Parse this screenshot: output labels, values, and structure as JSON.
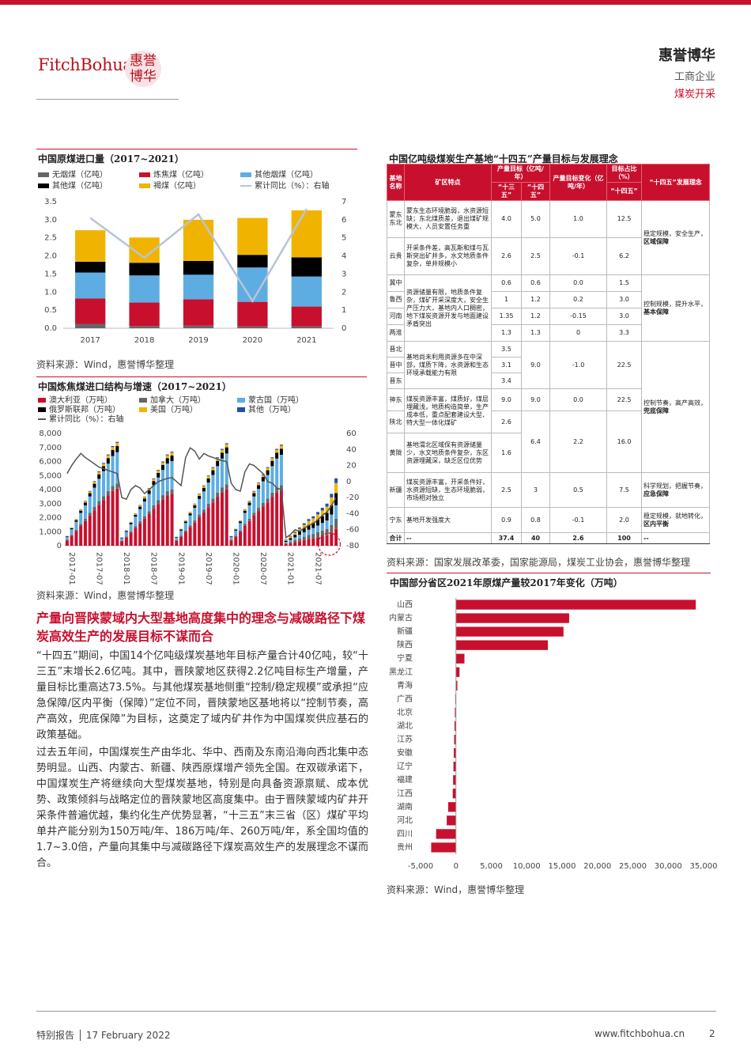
{
  "header": {
    "logo_text": "FitchBohua",
    "logo_seal": "惠誉博华",
    "company": "惠誉博华",
    "category": "工商企业",
    "sector": "煤炭开采"
  },
  "colors": {
    "accent": "#c8102e",
    "blue": "#5dade2",
    "gold": "#f0b400",
    "black": "#000000",
    "grey": "#666666",
    "line": "#b8c4d6"
  },
  "chart1": {
    "title": "中国原煤进口量（2017~2021）",
    "legend": [
      "无烟煤（亿吨）",
      "炼焦煤（亿吨）",
      "其他烟煤（亿吨）",
      "其他煤（亿吨）",
      "褐煤（亿吨）",
      "累计同比（%）：右轴"
    ],
    "source": "资料来源：Wind，惠誉博华整理"
  },
  "chart2": {
    "title": "中国炼焦煤进口结构与增速（2017~2021）",
    "legend": [
      "澳大利亚（万吨）",
      "加拿大（万吨）",
      "蒙古国（万吨）",
      "俄罗斯联邦（万吨）",
      "美国（万吨）",
      "其他（万吨）",
      "累计同比（%）：右轴"
    ],
    "source": "资料来源：Wind，惠誉博华整理"
  },
  "chart3": {
    "title": "中国部分省区2021年原煤产量较2017年变化（万吨）",
    "source": "资料来源：Wind，惠誉博华整理"
  },
  "chart_data": [
    {
      "type": "bar",
      "title": "中国原煤进口量（2017~2021）",
      "categories": [
        "2017",
        "2018",
        "2019",
        "2020",
        "2021"
      ],
      "stacked": true,
      "ylim": [
        0,
        3.5
      ],
      "y2lim": [
        0,
        7
      ],
      "yticks": [
        "0.0",
        "0.5",
        "1.0",
        "1.5",
        "2.0",
        "2.5",
        "3.0",
        "3.5"
      ],
      "y2ticks": [
        "0",
        "1",
        "2",
        "3",
        "4",
        "5",
        "6",
        "7"
      ],
      "series": [
        {
          "name": "无烟煤（亿吨）",
          "color": "#666666",
          "values": [
            0.12,
            0.06,
            0.07,
            0.05,
            0.05
          ]
        },
        {
          "name": "炼焦煤（亿吨）",
          "color": "#c8102e",
          "values": [
            0.7,
            0.65,
            0.73,
            0.68,
            0.55
          ]
        },
        {
          "name": "其他烟煤（亿吨）",
          "color": "#5dade2",
          "values": [
            0.72,
            0.75,
            0.68,
            0.95,
            0.83
          ]
        },
        {
          "name": "其他煤（亿吨）",
          "color": "#000000",
          "values": [
            0.3,
            0.35,
            0.38,
            0.35,
            0.53
          ]
        },
        {
          "name": "褐煤（亿吨）",
          "color": "#f0b400",
          "values": [
            0.87,
            0.7,
            1.14,
            1.02,
            1.3
          ]
        }
      ],
      "line": {
        "name": "累计同比（%）：右轴",
        "axis": "right",
        "values": [
          6.1,
          3.9,
          6.3,
          1.5,
          6.6
        ]
      }
    },
    {
      "type": "bar",
      "title": "中国炼焦煤进口结构与增速（2017~2021）",
      "stacked": true,
      "x_start": "2017-01",
      "xticks": [
        "2017-01",
        "2017-07",
        "2018-01",
        "2018-07",
        "2019-01",
        "2019-07",
        "2020-01",
        "2020-07",
        "2021-01",
        "2021-07"
      ],
      "ylim": [
        0,
        8000
      ],
      "y2lim": [
        -80,
        60
      ],
      "yticks": [
        "0",
        "1,000",
        "2,000",
        "3,000",
        "4,000",
        "5,000",
        "6,000",
        "7,000",
        "8,000"
      ],
      "y2ticks": [
        "-80",
        "-60",
        "-40",
        "-20",
        "0",
        "20",
        "40",
        "60"
      ],
      "totals": [
        700,
        1300,
        1900,
        2600,
        3200,
        3900,
        4600,
        5300,
        5900,
        6500,
        7100,
        7400,
        600,
        1100,
        1700,
        2300,
        2900,
        3500,
        4100,
        4800,
        5400,
        6000,
        6500,
        6700,
        650,
        1200,
        1800,
        2400,
        3000,
        3700,
        4300,
        5000,
        5600,
        6300,
        6900,
        7300,
        700,
        1200,
        1800,
        2600,
        3200,
        3900,
        4500,
        5100,
        5600,
        6300,
        6900,
        7200,
        450,
        700,
        1000,
        1300,
        1600,
        1900,
        2100,
        2400,
        2700,
        3000,
        3700,
        4800
      ],
      "australia_share": 0.55,
      "series": [
        {
          "name": "澳大利亚（万吨）",
          "color": "#c8102e"
        },
        {
          "name": "加拿大（万吨）",
          "color": "#666666"
        },
        {
          "name": "蒙古国（万吨）",
          "color": "#5dade2"
        },
        {
          "name": "俄罗斯联邦（万吨）",
          "color": "#000000"
        },
        {
          "name": "美国（万吨）",
          "color": "#f0b400"
        },
        {
          "name": "其他（万吨）",
          "color": "#1f4fb0"
        }
      ],
      "line": {
        "name": "累计同比（%）：右轴",
        "axis": "right",
        "values": [
          10,
          20,
          28,
          35,
          30,
          26,
          22,
          18,
          16,
          14,
          12,
          10,
          -20,
          -22,
          -10,
          -5,
          -8,
          -15,
          -10,
          -5,
          0,
          2,
          4,
          5,
          0,
          -5,
          30,
          42,
          38,
          28,
          35,
          32,
          30,
          28,
          26,
          25,
          -2,
          -10,
          -12,
          12,
          22,
          20,
          15,
          10,
          0,
          -2,
          -8,
          -10,
          -70,
          -66,
          -60,
          -62,
          -58,
          -55,
          -52,
          -48,
          -42,
          -38,
          -30,
          -20
        ]
      }
    },
    {
      "type": "bar",
      "orientation": "horizontal",
      "title": "中国部分省区2021年原煤产量较2017年变化（万吨）",
      "categories": [
        "山西",
        "内蒙古",
        "新疆",
        "陕西",
        "宁夏",
        "黑龙江",
        "青海",
        "广西",
        "北京",
        "湖北",
        "江苏",
        "安徽",
        "辽宁",
        "福建",
        "江西",
        "湖南",
        "河北",
        "四川",
        "贵州"
      ],
      "values": [
        33900,
        16000,
        15200,
        13000,
        1200,
        500,
        200,
        -100,
        -150,
        -200,
        -250,
        -300,
        -350,
        -400,
        -450,
        -1100,
        -1300,
        -2800,
        -3500
      ],
      "xlim": [
        -5000,
        35000
      ],
      "xticks": [
        "-5,000",
        "0",
        "5,000",
        "10,000",
        "15,000",
        "20,000",
        "25,000",
        "30,000",
        "35,000"
      ],
      "color": "#c8102e"
    }
  ],
  "table": {
    "title": "中国亿吨级煤炭生产基地“十四五”产量目标与发展理念",
    "headers": {
      "base": "基地名称",
      "area": "矿区特点",
      "target": "产量目标（亿吨/年）",
      "t135": "“十三五”",
      "t145": "“十四五”",
      "change": "产量目标变化（亿吨/年）",
      "share": "目标占比（%）",
      "share_sub": "“十四五”",
      "concept": "“十四五”发展理念"
    },
    "rows": [
      {
        "base": "蒙东东北",
        "area": "蒙东生态环境脆弱，水资源短缺；东北煤质差，退出煤矿规模大，人员安置任务重",
        "t135": "4.0",
        "t145": "5.0",
        "change": "1.0",
        "share": "12.5"
      },
      {
        "base": "云贵",
        "area": "开采条件差，高瓦斯和煤与瓦斯突出矿井多，水文地质条件复杂，单井规模小",
        "t135": "2.6",
        "t145": "2.5",
        "change": "-0.1",
        "share": "6.2"
      },
      {
        "base": "冀中",
        "area": "资源储量有限，地质条件复杂，煤矿开采深度大，安全生产压力大，基地内人口稠密，地下煤炭资源开发与地面建设矛盾突出",
        "t135": "0.6",
        "t145": "0.6",
        "change": "0.0",
        "share": "1.5"
      },
      {
        "base": "鲁西",
        "t135": "1",
        "t145": "1.2",
        "change": "0.2",
        "share": "3.0"
      },
      {
        "base": "河南",
        "t135": "1.35",
        "t145": "1.2",
        "change": "-0.15",
        "share": "3.0"
      },
      {
        "base": "两淮",
        "t135": "1.3",
        "t145": "1.3",
        "change": "0",
        "share": "3.3"
      },
      {
        "base": "晋北",
        "area": "基地尚未利用资源多在中深部，煤质下降，水资源和生态环境承载能力有限",
        "t135": "3.5",
        "t145": "9.0",
        "change": "-1.0",
        "share": "22.5"
      },
      {
        "base": "晋中",
        "t135": "3.1"
      },
      {
        "base": "晋东",
        "t135": "3.4"
      },
      {
        "base": "神东",
        "area": "煤炭资源丰富，煤质好，煤层埋藏浅，地质构造简单，生产成本低，重点配套建设大型、特大型一体化煤矿",
        "t135": "9.0",
        "t145": "9.0",
        "change": "0.0",
        "share": "22.5"
      },
      {
        "base": "陕北",
        "t135": "2.6",
        "t145": "6.4",
        "change": "2.2",
        "share": "16.0"
      },
      {
        "base": "黄陇",
        "area": "基地渭北区域保有资源储量少，水文地质条件复杂，东区资源埋藏深，缺乏区位优势",
        "t135": "1.6"
      },
      {
        "base": "新疆",
        "area": "煤炭资源丰富，开采条件好，水资源短缺，生态环境脆弱，市场相对独立",
        "t135": "2.5",
        "t145": "3",
        "change": "0.5",
        "share": "7.5"
      },
      {
        "base": "宁东",
        "area": "基地开发强度大",
        "t135": "0.9",
        "t145": "0.8",
        "change": "-0.1",
        "share": "2.0"
      }
    ],
    "concepts": {
      "c1": "稳定规模，安全生产，",
      "c1b": "区域保障",
      "c2": "控制规模，提升水平，",
      "c2b": "基本保障",
      "c3": "控制节奏，高产高效，",
      "c3b": "兜底保障",
      "c4": "科学规划，把握节奏，",
      "c4b": "应急保障",
      "c5": "稳定规模，就地转化，",
      "c5b": "区内平衡"
    },
    "total": {
      "label": "合计",
      "area": "--",
      "t135": "37.4",
      "t145": "40",
      "change": "2.6",
      "share": "100",
      "concept": "--"
    },
    "source": "资料来源：国家发展改革委，国家能源局，煤炭工业协会，惠誉博华整理"
  },
  "article": {
    "heading": "产量向晋陕蒙域内大型基地高度集中的理念与减碳路径下煤炭高效生产的发展目标不谋而合",
    "p1": "“十四五”期间，中国14个亿吨级煤炭基地年目标产量合计40亿吨，较“十三五”末增长2.6亿吨。其中，晋陕蒙地区获得2.2亿吨目标生产增量，产量目标比重高达73.5%。与其他煤炭基地侧重“控制/稳定规模”或承担“应急保障/区内平衡（保障）”定位不同，晋陕蒙地区基地将以“控制节奏，高产高效，兜底保障”为目标，这奠定了域内矿井作为中国煤炭供应基石的政策基础。",
    "p2": "过去五年间，中国煤炭生产由华北、华中、西南及东南沿海向西北集中态势明显。山西、内蒙古、新疆、陕西原煤增产领先全国。在双碳承诺下，中国煤炭生产将继续向大型煤炭基地，特别是向具备资源禀赋、成本优势、政策倾斜与战略定位的晋陕蒙地区高度集中。由于晋陕蒙域内矿井开采条件普遍优越，集约化生产优势显著，“十三五”末三省（区）煤矿平均单井产能分别为150万吨/年、186万吨/年、260万吨/年，系全国均值的1.7~3.0倍，产量向其集中与减碳路径下煤炭高效生产的发展理念不谋而合。"
  },
  "footer": {
    "left": "特别报告 │ 17 February 2022",
    "url": "www.fitchbohua.cn",
    "page": "2"
  }
}
